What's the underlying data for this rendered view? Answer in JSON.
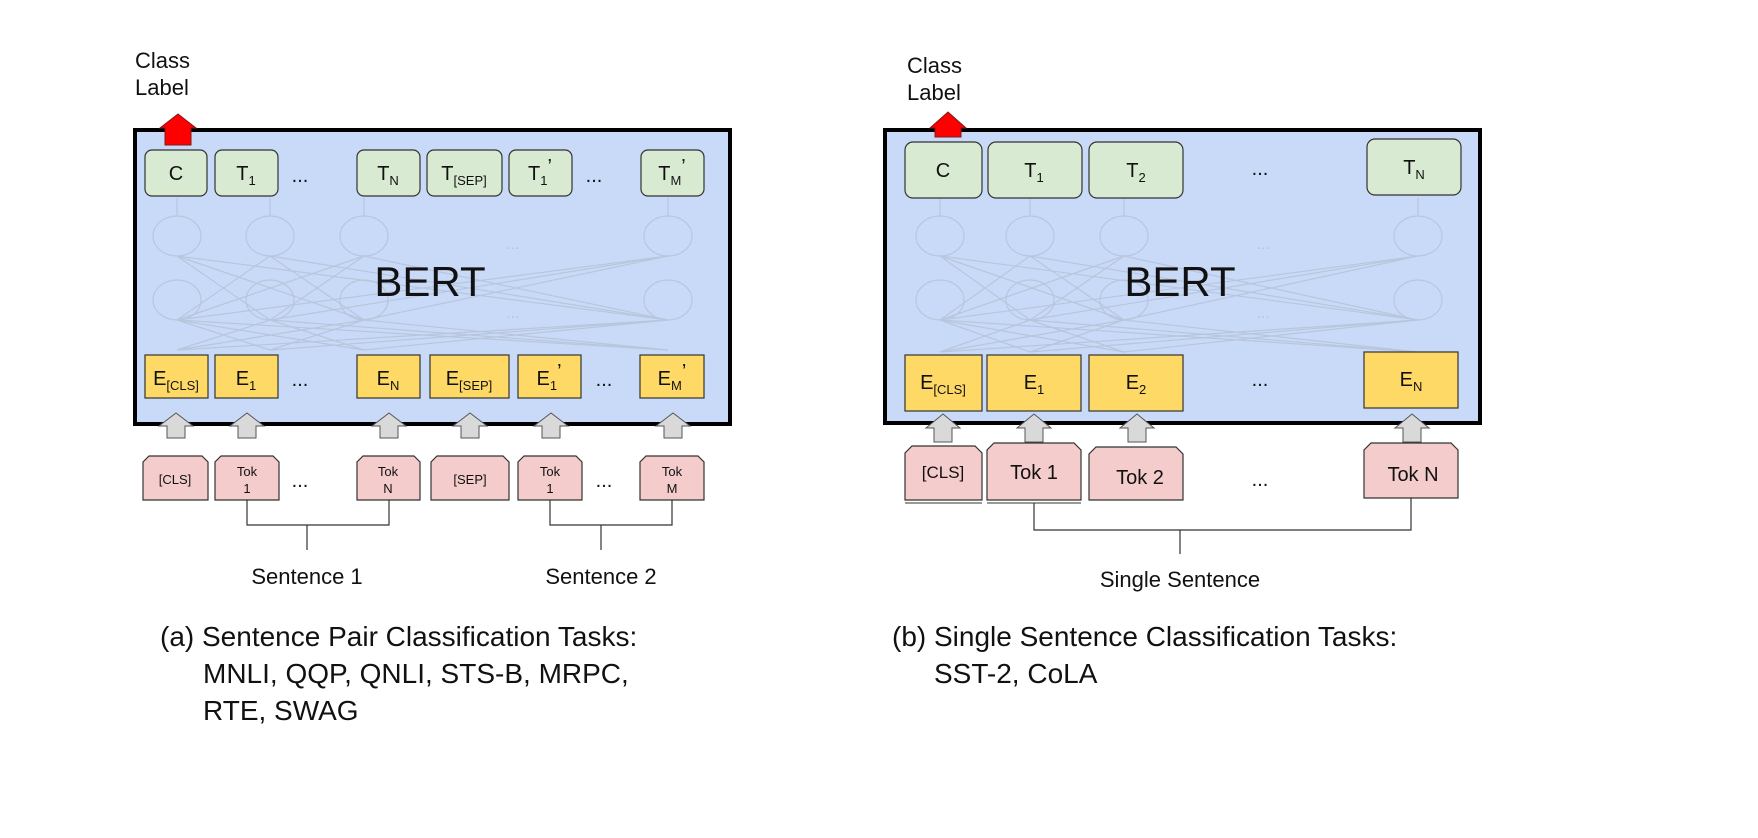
{
  "panel_a": {
    "class_label": [
      "Class",
      "Label"
    ],
    "model_name": "BERT",
    "outputs": [
      {
        "main": "C",
        "sub": "",
        "prime": ""
      },
      {
        "main": "T",
        "sub": "1",
        "prime": ""
      },
      {
        "main": "T",
        "sub": "N",
        "prime": ""
      },
      {
        "main": "T",
        "sub": "[SEP]",
        "prime": ""
      },
      {
        "main": "T",
        "sub": "1",
        "prime": "’"
      },
      {
        "main": "T",
        "sub": "M",
        "prime": "’"
      }
    ],
    "embeddings": [
      {
        "main": "E",
        "sub": "[CLS]",
        "prime": ""
      },
      {
        "main": "E",
        "sub": "1",
        "prime": ""
      },
      {
        "main": "E",
        "sub": "N",
        "prime": ""
      },
      {
        "main": "E",
        "sub": "[SEP]",
        "prime": ""
      },
      {
        "main": "E",
        "sub": "1",
        "prime": "’"
      },
      {
        "main": "E",
        "sub": "M",
        "prime": "’"
      }
    ],
    "tokens": [
      [
        "[CLS]"
      ],
      [
        "Tok",
        "1"
      ],
      [
        "Tok",
        "N"
      ],
      [
        "[SEP]"
      ],
      [
        "Tok",
        "1"
      ],
      [
        "Tok",
        "M"
      ]
    ],
    "ellipsis": "...",
    "sentence_labels": [
      "Sentence 1",
      "Sentence 2"
    ],
    "caption": [
      "(a) Sentence Pair Classification Tasks:",
      "MNLI, QQP, QNLI, STS-B, MRPC,",
      "RTE, SWAG"
    ]
  },
  "panel_b": {
    "class_label": [
      "Class",
      "Label"
    ],
    "model_name": "BERT",
    "outputs": [
      {
        "main": "C",
        "sub": ""
      },
      {
        "main": "T",
        "sub": "1"
      },
      {
        "main": "T",
        "sub": "2"
      },
      {
        "main": "T",
        "sub": "N"
      }
    ],
    "embeddings": [
      {
        "main": "E",
        "sub": "[CLS]"
      },
      {
        "main": "E",
        "sub": "1"
      },
      {
        "main": "E",
        "sub": "2"
      },
      {
        "main": "E",
        "sub": "N"
      }
    ],
    "tokens": [
      "[CLS]",
      "Tok 1",
      "Tok 2",
      "Tok N"
    ],
    "ellipsis": "...",
    "sentence_label": "Single Sentence",
    "caption": [
      "(b) Single Sentence Classification Tasks:",
      "SST-2, CoLA"
    ]
  },
  "colors": {
    "bert_box": "#c9daf8",
    "output_node": "#d9ead3",
    "embedding_node": "#ffd966",
    "token_node": "#f4cccc",
    "class_arrow": "#ff0000",
    "input_arrow": "#d9d9d9"
  }
}
